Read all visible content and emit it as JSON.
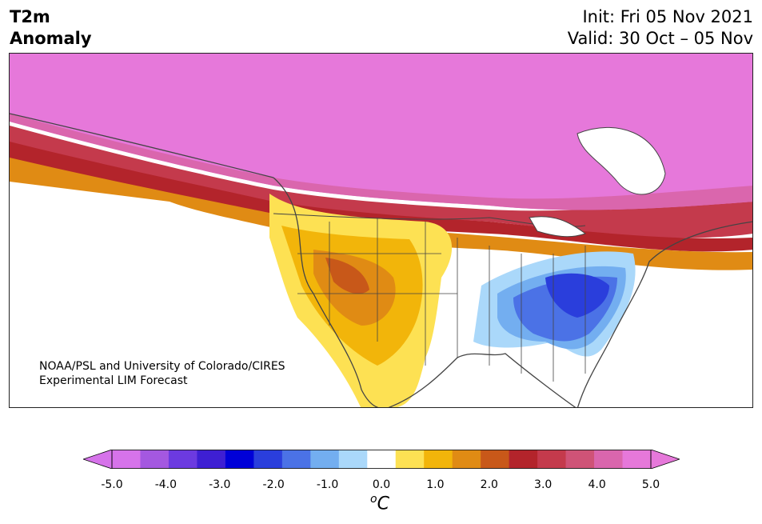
{
  "title": {
    "variable": "T2m",
    "subtitle": "Anomaly",
    "init": "Init: Fri 05 Nov 2021",
    "valid": "Valid: 30 Oct – 05 Nov"
  },
  "credit": {
    "line1": "NOAA/PSL and University of Colorado/CIRES",
    "line2": "Experimental LIM Forecast"
  },
  "colorbar": {
    "ticks": [
      "-5.0",
      "-4.0",
      "-3.0",
      "-2.0",
      "-1.0",
      "0.0",
      "1.0",
      "2.0",
      "3.0",
      "4.0",
      "5.0"
    ],
    "units_base": "C",
    "units_sup": "o",
    "levels": [
      -5.0,
      -4.5,
      -4.0,
      -3.5,
      -3.0,
      -2.5,
      -2.0,
      -1.5,
      -1.0,
      -0.5,
      0.5,
      1.0,
      1.5,
      2.0,
      2.5,
      3.0,
      3.5,
      4.0,
      4.5,
      5.0
    ],
    "colors": [
      "#d673ea",
      "#a458e0",
      "#6c3ae0",
      "#3e1fd3",
      "#0000d8",
      "#2a3edc",
      "#4b72e6",
      "#73aef0",
      "#aad8fa",
      "#ffffff",
      "#fde153",
      "#f2b50a",
      "#e08b14",
      "#c85819",
      "#b3242b",
      "#c43a4c",
      "#cf5377",
      "#da66ad",
      "#e678da"
    ],
    "extend_colors": {
      "min": "#d673ea",
      "max": "#e678da"
    }
  },
  "map": {
    "region": "North America",
    "anomaly_regions": [
      {
        "area": "Canada / Alaska",
        "range": "above 5.0",
        "color": "#e678da"
      },
      {
        "area": "Southern Canada band",
        "range": "2.5 to 4.5",
        "color": "#b3242b"
      },
      {
        "area": "Western US",
        "range": "0.5 to 2.5",
        "color": "#f2b50a"
      },
      {
        "area": "Central US",
        "range": "-0.5 to 0.5",
        "color": "#ffffff"
      },
      {
        "area": "Eastern US",
        "range": "-3.5 to -0.5",
        "color": "#2a3edc"
      }
    ]
  }
}
